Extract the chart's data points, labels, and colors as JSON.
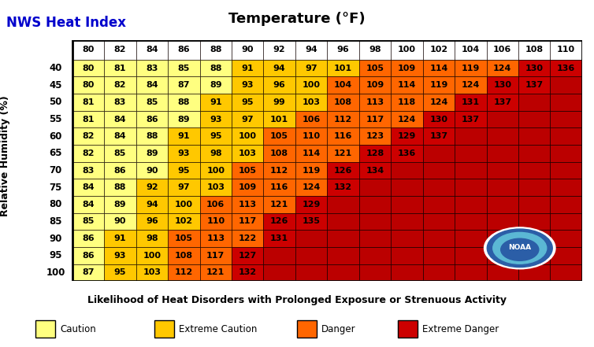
{
  "title_left": "NWS Heat Index",
  "title_center": "Temperature (°F)",
  "xlabel": "Likelihood of Heat Disorders with Prolonged Exposure or Strenuous Activity",
  "ylabel": "Relative Humidity (%)",
  "col_labels": [
    80,
    82,
    84,
    86,
    88,
    90,
    92,
    94,
    96,
    98,
    100,
    102,
    104,
    106,
    108,
    110
  ],
  "row_labels": [
    40,
    45,
    50,
    55,
    60,
    65,
    70,
    75,
    80,
    85,
    90,
    95,
    100
  ],
  "table_data": [
    [
      80,
      81,
      83,
      85,
      88,
      91,
      94,
      97,
      101,
      105,
      109,
      114,
      119,
      124,
      130,
      136
    ],
    [
      80,
      82,
      84,
      87,
      89,
      93,
      96,
      100,
      104,
      109,
      114,
      119,
      124,
      130,
      137,
      null
    ],
    [
      81,
      83,
      85,
      88,
      91,
      95,
      99,
      103,
      108,
      113,
      118,
      124,
      131,
      137,
      null,
      null
    ],
    [
      81,
      84,
      86,
      89,
      93,
      97,
      101,
      106,
      112,
      117,
      124,
      130,
      137,
      null,
      null,
      null
    ],
    [
      82,
      84,
      88,
      91,
      95,
      100,
      105,
      110,
      116,
      123,
      129,
      137,
      null,
      null,
      null,
      null
    ],
    [
      82,
      85,
      89,
      93,
      98,
      103,
      108,
      114,
      121,
      128,
      136,
      null,
      null,
      null,
      null,
      null
    ],
    [
      83,
      86,
      90,
      95,
      100,
      105,
      112,
      119,
      126,
      134,
      null,
      null,
      null,
      null,
      null,
      null
    ],
    [
      84,
      88,
      92,
      97,
      103,
      109,
      116,
      124,
      132,
      null,
      null,
      null,
      null,
      null,
      null,
      null
    ],
    [
      84,
      89,
      94,
      100,
      106,
      113,
      121,
      129,
      null,
      null,
      null,
      null,
      null,
      null,
      null,
      null
    ],
    [
      85,
      90,
      96,
      102,
      110,
      117,
      126,
      135,
      null,
      null,
      null,
      null,
      null,
      null,
      null,
      null
    ],
    [
      86,
      91,
      98,
      105,
      113,
      122,
      131,
      null,
      null,
      null,
      null,
      null,
      null,
      null,
      null,
      null
    ],
    [
      86,
      93,
      100,
      108,
      117,
      127,
      null,
      null,
      null,
      null,
      null,
      null,
      null,
      null,
      null,
      null
    ],
    [
      87,
      95,
      103,
      112,
      121,
      132,
      null,
      null,
      null,
      null,
      null,
      null,
      null,
      null,
      null,
      null
    ]
  ],
  "color_caution": "#FFFF80",
  "color_extreme_caution": "#FFC800",
  "color_danger": "#FF6600",
  "color_extreme_danger": "#CC0000",
  "color_empty": "#BB0000",
  "color_header_bg": "#FFFFFF",
  "background_color": "#FFFFFF",
  "title_left_color": "#0000CC",
  "title_fontsize": 12,
  "cell_fontsize": 8,
  "header_fontsize": 8,
  "row_label_fontsize": 8.5,
  "axis_label_fontsize": 9,
  "legend_fontsize": 8.5,
  "noaa_outer_color": "#FFFFFF",
  "noaa_mid_color": "#1B6FA8",
  "noaa_inner_color": "#5BBCD6",
  "noaa_text_color": "#FFFFFF"
}
